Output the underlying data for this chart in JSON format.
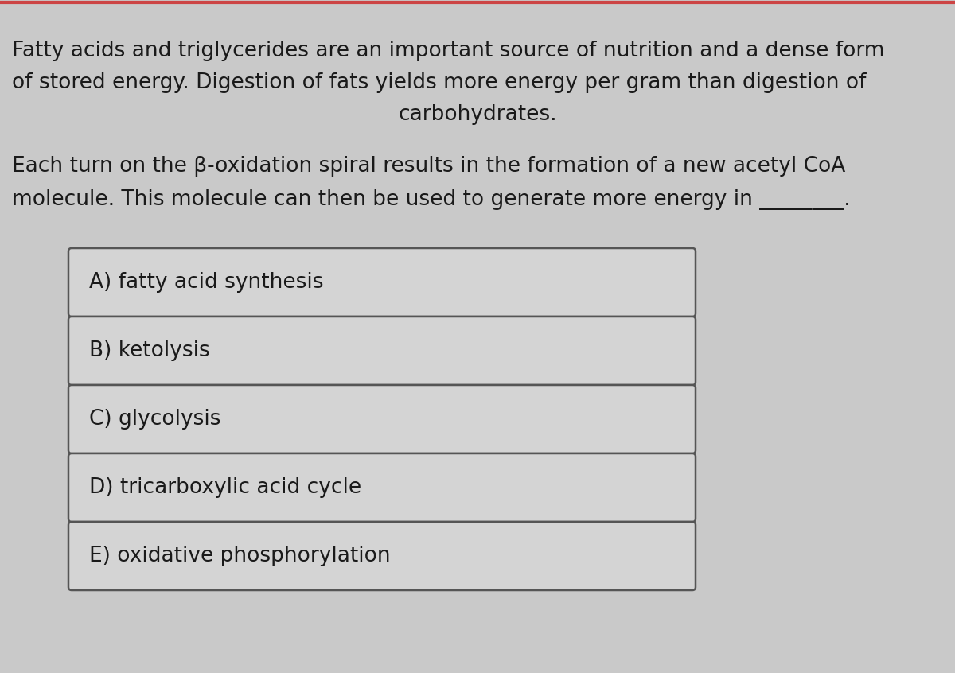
{
  "background_color": "#c9c9c9",
  "top_border_color": "#cc4444",
  "paragraph1_lines": [
    "Fatty acids and triglycerides are an important source of nutrition and a dense form",
    "of stored energy. Digestion of fats yields more energy per gram than digestion of",
    "carbohydrates."
  ],
  "paragraph1_align": [
    "left",
    "left",
    "center"
  ],
  "paragraph2_lines": [
    "Each turn on the β-oxidation spiral results in the formation of a new acetyl CoA",
    "molecule. This molecule can then be used to generate more energy in ________."
  ],
  "paragraph2_align": [
    "left",
    "left"
  ],
  "options": [
    "A) fatty acid synthesis",
    "B) ketolysis",
    "C) glycolysis",
    "D) tricarboxylic acid cycle",
    "E) oxidative phosphorylation"
  ],
  "text_color": "#1a1a1a",
  "option_box_facecolor": "#d4d4d4",
  "option_box_edgecolor": "#555555",
  "option_text_color": "#1a1a1a",
  "text_fontsize": 19,
  "option_fontsize": 19,
  "fig_width": 12.0,
  "fig_height": 8.46,
  "dpi": 100
}
